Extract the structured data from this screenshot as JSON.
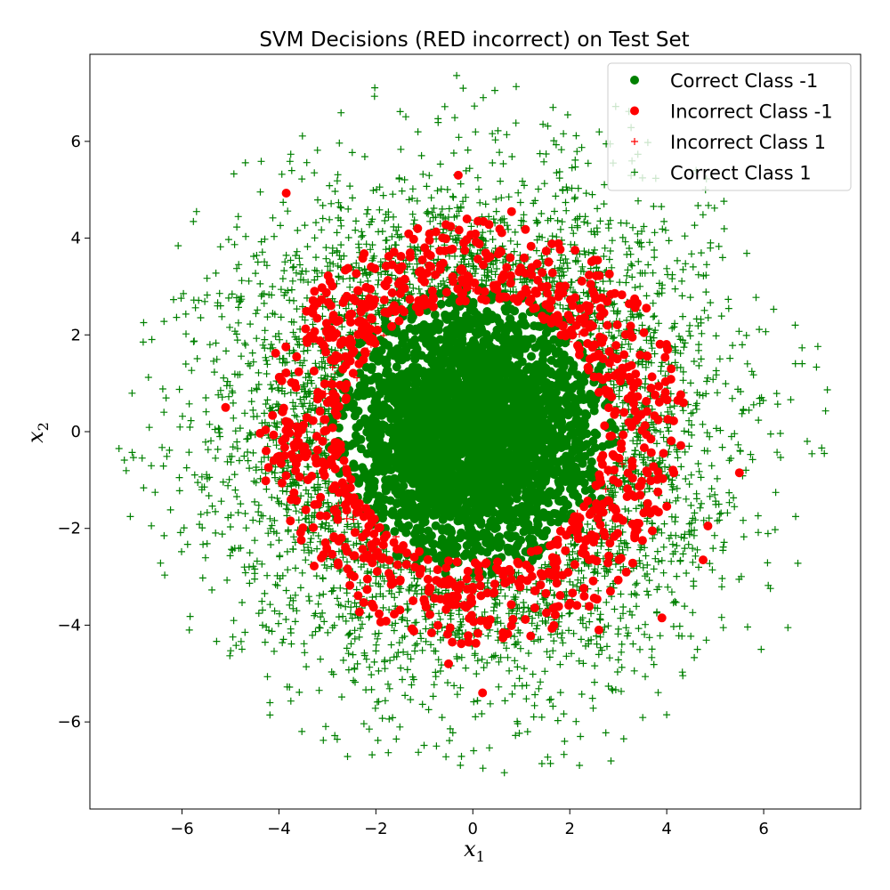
{
  "chart_data": {
    "type": "scatter",
    "title": "SVM Decisions (RED incorrect) on Test Set",
    "xlabel": "x",
    "xlabel_sub": "1",
    "ylabel": "x",
    "ylabel_sub": "2",
    "xlim": [
      -7.9,
      8.0
    ],
    "ylim": [
      -7.8,
      7.8
    ],
    "xticks": [
      -6,
      -4,
      -2,
      0,
      2,
      4,
      6
    ],
    "yticks": [
      -6,
      -4,
      -2,
      0,
      2,
      4,
      6
    ],
    "grid": false,
    "legend_position": "top-right",
    "colors": {
      "correct": "#008000",
      "incorrect": "#ff0000"
    },
    "legend": [
      {
        "name": "Correct Class -1",
        "marker": "circle",
        "color": "#008000"
      },
      {
        "name": "Incorrect Class -1",
        "marker": "circle",
        "color": "#ff0000"
      },
      {
        "name": "Incorrect Class 1",
        "marker": "plus",
        "color": "#ff0000"
      },
      {
        "name": "Correct Class 1",
        "marker": "plus",
        "color": "#008000"
      }
    ],
    "series": [
      {
        "name": "Correct Class -1",
        "marker": "circle",
        "color": "#008000",
        "distribution": {
          "shape": "disk",
          "center": [
            0,
            0
          ],
          "radius": 3.0,
          "count": 3200
        },
        "points": [
          [
            0.1,
            0.2
          ],
          [
            -1.0,
            0.8
          ],
          [
            1.3,
            -0.7
          ],
          [
            -0.6,
            -1.5
          ],
          [
            2.0,
            0.4
          ],
          [
            -2.1,
            -0.3
          ],
          [
            0.5,
            2.1
          ],
          [
            0.3,
            -2.2
          ]
        ]
      },
      {
        "name": "Incorrect Class -1",
        "marker": "circle",
        "color": "#ff0000",
        "distribution": {
          "shape": "ring",
          "center": [
            0,
            0
          ],
          "r_min": 2.7,
          "r_max": 4.4,
          "count": 950
        },
        "points": [
          [
            -3.85,
            4.93
          ],
          [
            -0.3,
            5.3
          ],
          [
            0.8,
            4.55
          ],
          [
            -5.1,
            0.5
          ],
          [
            5.5,
            -0.85
          ],
          [
            4.85,
            -1.95
          ],
          [
            4.75,
            -2.65
          ],
          [
            3.9,
            -3.85
          ],
          [
            0.2,
            -5.4
          ],
          [
            -0.5,
            -4.8
          ],
          [
            2.6,
            -4.1
          ],
          [
            -3.0,
            0.6
          ]
        ]
      },
      {
        "name": "Incorrect Class 1",
        "marker": "plus",
        "color": "#ff0000",
        "distribution": {
          "shape": "ring",
          "center": [
            0,
            0
          ],
          "r_min": 2.6,
          "r_max": 3.2,
          "count": 40
        },
        "points": [
          [
            -3.0,
            0.1
          ],
          [
            -2.6,
            -1.8
          ],
          [
            2.7,
            1.5
          ]
        ]
      },
      {
        "name": "Correct Class 1",
        "marker": "plus",
        "color": "#008000",
        "distribution": {
          "shape": "ring",
          "center": [
            0,
            0
          ],
          "r_min": 3.0,
          "r_max": 7.4,
          "count": 3400
        },
        "points": [
          [
            -7.3,
            -0.35
          ],
          [
            -6.8,
            1.85
          ],
          [
            7.25,
            -0.45
          ],
          [
            6.65,
            2.2
          ],
          [
            -0.2,
            7.1
          ],
          [
            0.65,
            -7.05
          ],
          [
            6.5,
            -4.05
          ],
          [
            -5.85,
            -4.1
          ],
          [
            -0.75,
            -6.5
          ],
          [
            4.8,
            5.0
          ],
          [
            -5.7,
            4.55
          ],
          [
            5.95,
            -4.5
          ]
        ]
      }
    ]
  }
}
